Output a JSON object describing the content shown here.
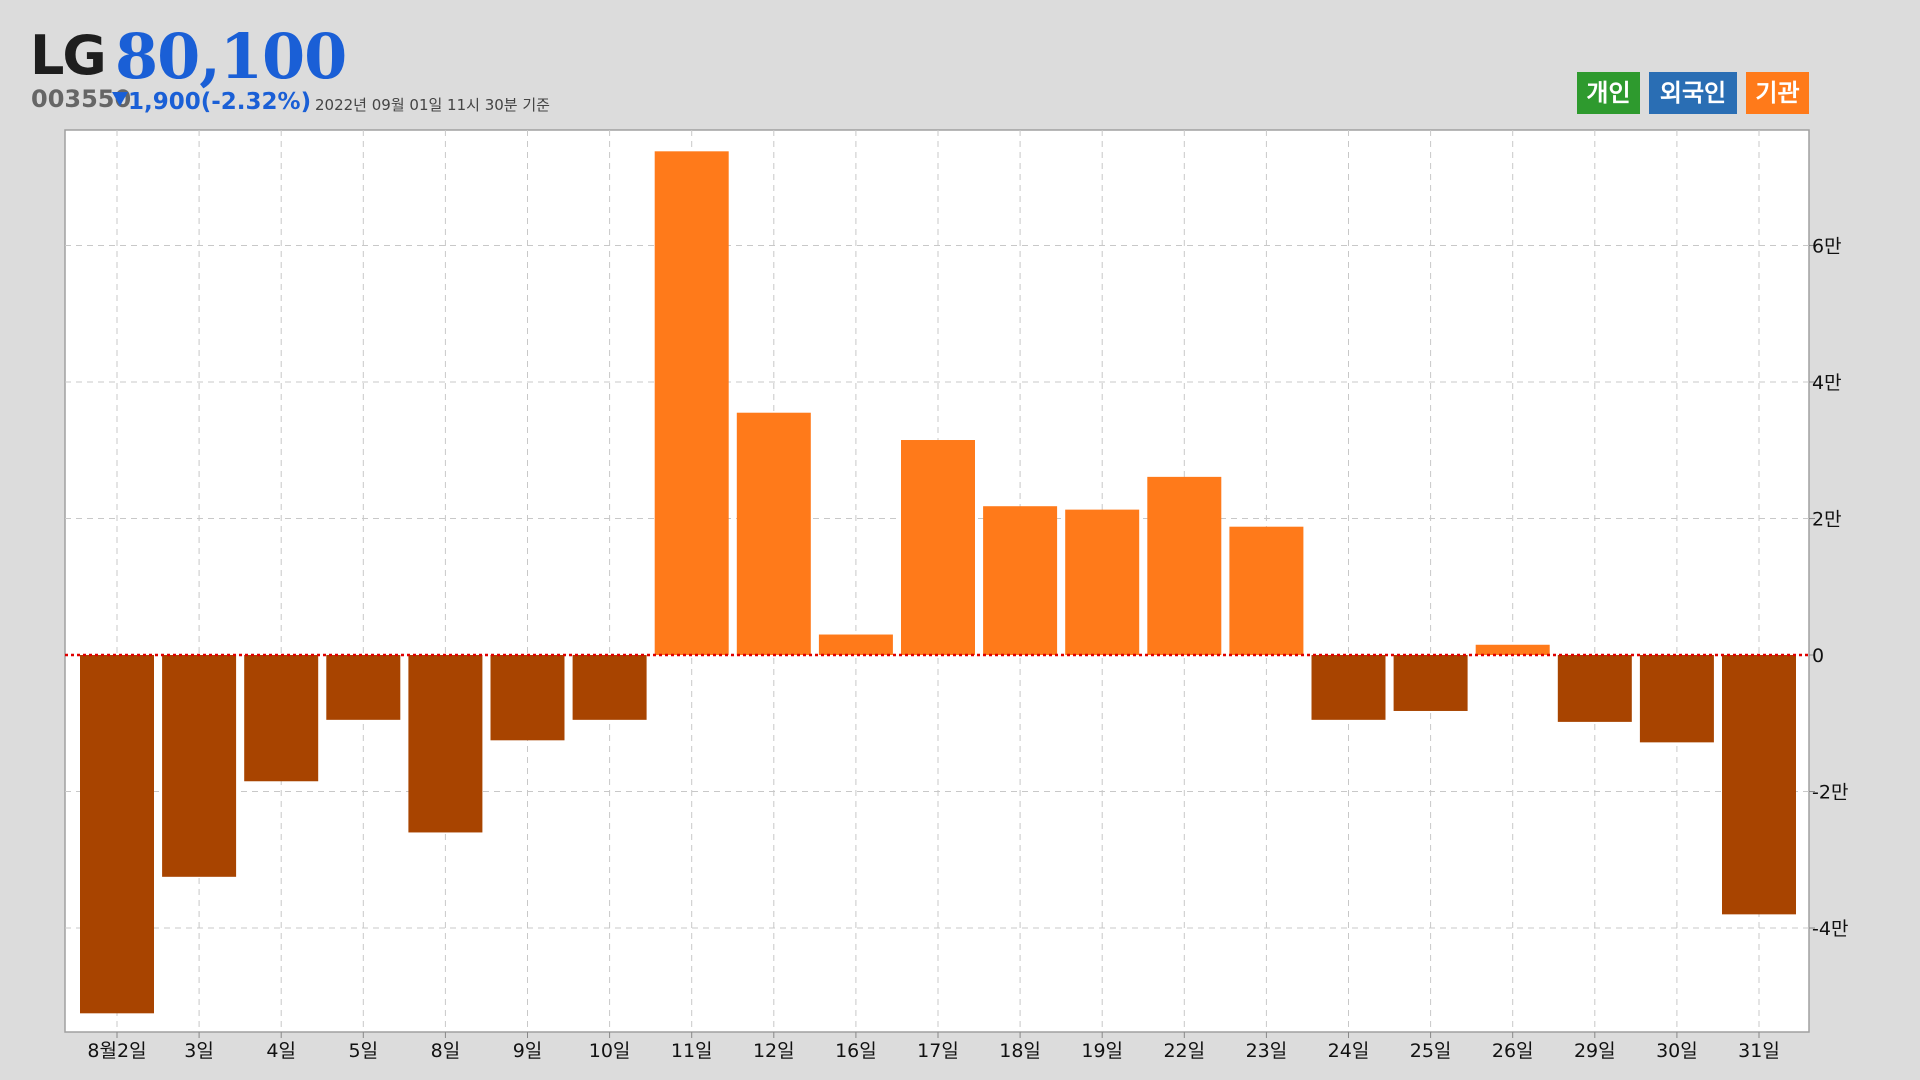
{
  "header": {
    "name": "LG",
    "price": "80,100",
    "code": "003550",
    "change": "1,900(-2.32%)",
    "timestamp": "2022년 09월 01일 11시 30분 기준"
  },
  "legend": {
    "individual": "개인",
    "foreign": "외국인",
    "institution": "기관"
  },
  "colors": {
    "positive": "#ff7a1a",
    "negative": "#a84400",
    "zero_line": "#e00000",
    "price": "#1a5fd6",
    "individual": "#2e9a2e",
    "foreign": "#2a6eb4",
    "institution": "#ff7a1a"
  },
  "chart_data": {
    "type": "bar",
    "series_name": "기관",
    "categories": [
      "8월2일",
      "3일",
      "4일",
      "5일",
      "8일",
      "9일",
      "10일",
      "11일",
      "12일",
      "16일",
      "17일",
      "18일",
      "19일",
      "22일",
      "23일",
      "24일",
      "25일",
      "26일",
      "29일",
      "30일",
      "31일"
    ],
    "values": [
      -52500,
      -32500,
      -18500,
      -9500,
      -26000,
      -12500,
      -9500,
      73800,
      35500,
      3000,
      31500,
      21800,
      21300,
      26100,
      18800,
      -9500,
      -8200,
      1500,
      -9800,
      -12800,
      -38000
    ],
    "ylim": [
      -55000,
      76000
    ],
    "yticks": [
      -40000,
      -20000,
      0,
      20000,
      40000,
      60000
    ],
    "ytick_labels": [
      "-4만",
      "-2만",
      "0",
      "2만",
      "4만",
      "6만"
    ],
    "grid": true,
    "y_axis_side": "right"
  }
}
